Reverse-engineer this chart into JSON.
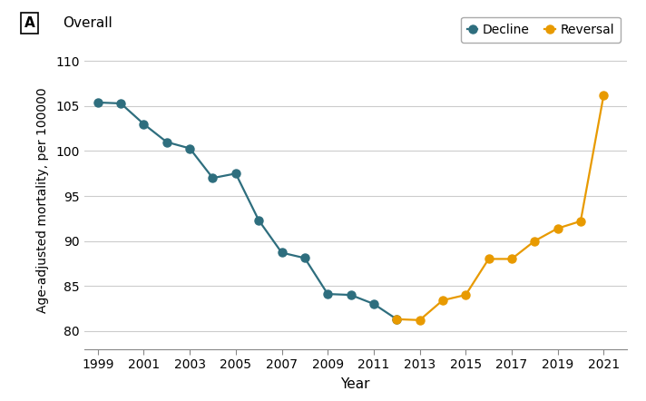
{
  "panel_label": "A",
  "title": "Overall",
  "xlabel": "Year",
  "ylabel": "Age-adjusted mortality, per 100000",
  "ylim": [
    78,
    111
  ],
  "yticks": [
    80,
    85,
    90,
    95,
    100,
    105,
    110
  ],
  "xlim": [
    1998.4,
    2022.0
  ],
  "decline_color": "#2E6E7E",
  "reversal_color": "#E89A00",
  "decline_years": [
    1999,
    2000,
    2001,
    2002,
    2003,
    2004,
    2005,
    2006,
    2007,
    2008,
    2009,
    2010,
    2011,
    2012
  ],
  "decline_values": [
    105.4,
    105.3,
    103.0,
    101.0,
    100.3,
    97.0,
    97.5,
    92.3,
    88.7,
    88.1,
    84.1,
    84.0,
    83.0,
    81.3
  ],
  "reversal_years": [
    2012,
    2013,
    2014,
    2015,
    2016,
    2017,
    2018,
    2019,
    2020,
    2021
  ],
  "reversal_values": [
    81.3,
    81.2,
    83.4,
    84.0,
    88.0,
    88.0,
    90.0,
    91.4,
    92.2,
    106.2
  ],
  "xticks": [
    1999,
    2001,
    2003,
    2005,
    2007,
    2009,
    2011,
    2013,
    2015,
    2017,
    2019,
    2021
  ],
  "legend_decline": "Decline",
  "legend_reversal": "Reversal",
  "marker_size": 6.5,
  "linewidth": 1.6,
  "background_color": "#FFFFFF",
  "grid_color": "#CCCCCC"
}
